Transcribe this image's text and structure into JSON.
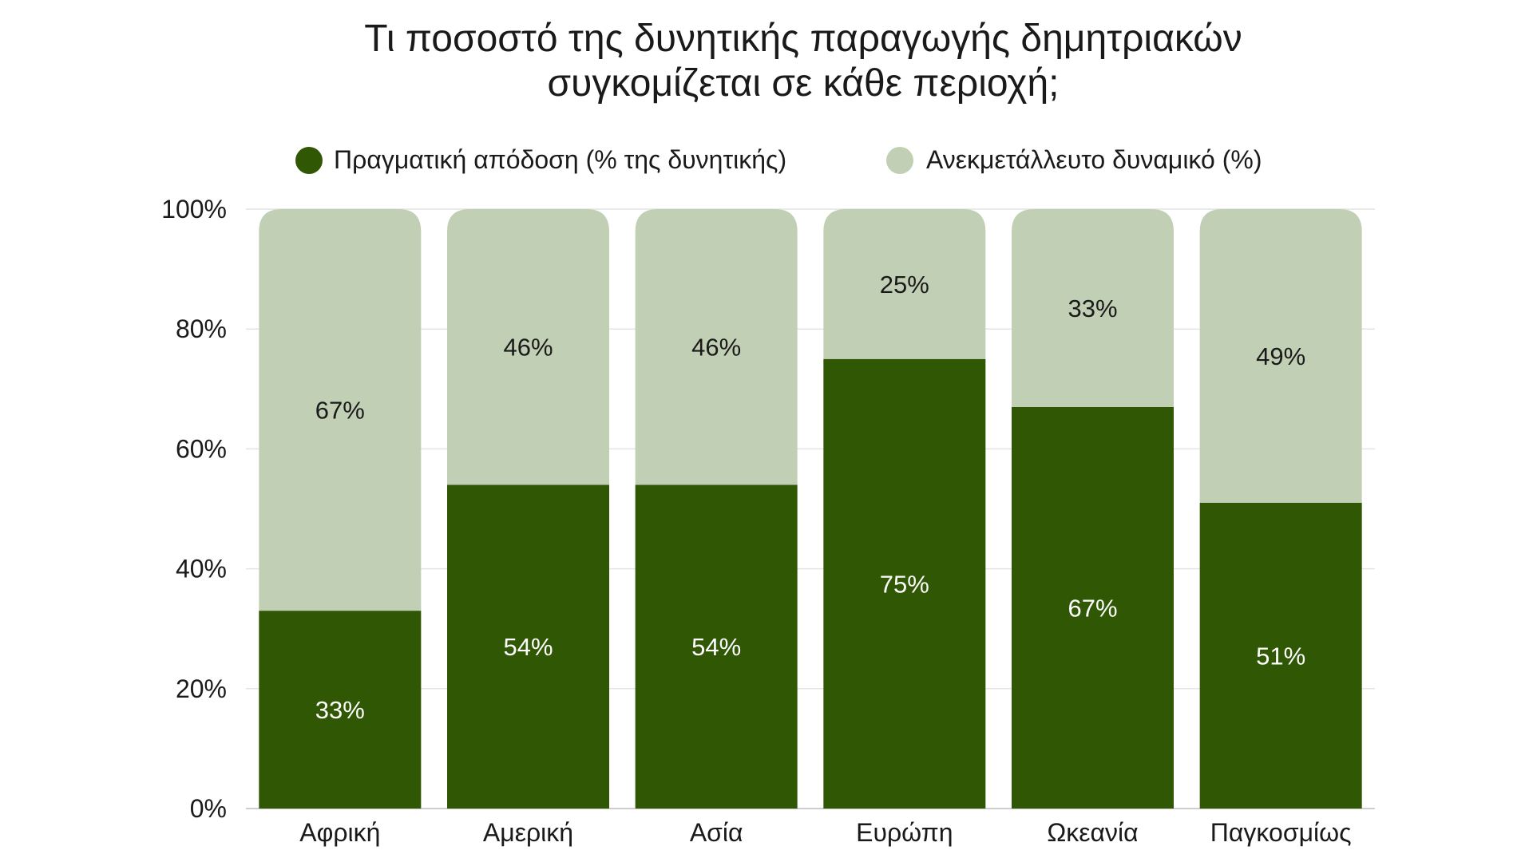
{
  "chart_data": {
    "type": "bar",
    "stacked": true,
    "title": "Τι ποσοστό της δυνητικής παραγωγής δημητριακών συγκομίζεται σε κάθε περιοχή;",
    "title_lines": [
      "Τι ποσοστό της δυνητικής παραγωγής δημητριακών",
      "συγκομίζεται σε κάθε περιοχή;"
    ],
    "xlabel": "",
    "ylabel": "",
    "ylim": [
      0,
      100
    ],
    "yticks": [
      0,
      20,
      40,
      60,
      80,
      100
    ],
    "ytick_labels": [
      "0%",
      "20%",
      "40%",
      "60%",
      "80%",
      "100%"
    ],
    "grid": true,
    "legend_position": "top",
    "categories": [
      "Αφρική",
      "Αμερική",
      "Ασία",
      "Ευρώπη",
      "Ωκεανία",
      "Παγκοσμίως"
    ],
    "series": [
      {
        "name": "Πραγματική απόδοση (% της δυνητικής)",
        "color": "#2f5704",
        "label_color": "#ffffff",
        "values": [
          33,
          54,
          54,
          75,
          67,
          51
        ],
        "labels": [
          "33%",
          "54%",
          "54%",
          "75%",
          "67%",
          "51%"
        ]
      },
      {
        "name": "Ανεκμετάλλευτο δυναμικό (%)",
        "color": "#c1d0b4",
        "label_color": "#1a1a1a",
        "values": [
          67,
          46,
          46,
          25,
          33,
          49
        ],
        "labels": [
          "67%",
          "46%",
          "46%",
          "25%",
          "33%",
          "49%"
        ]
      }
    ]
  }
}
